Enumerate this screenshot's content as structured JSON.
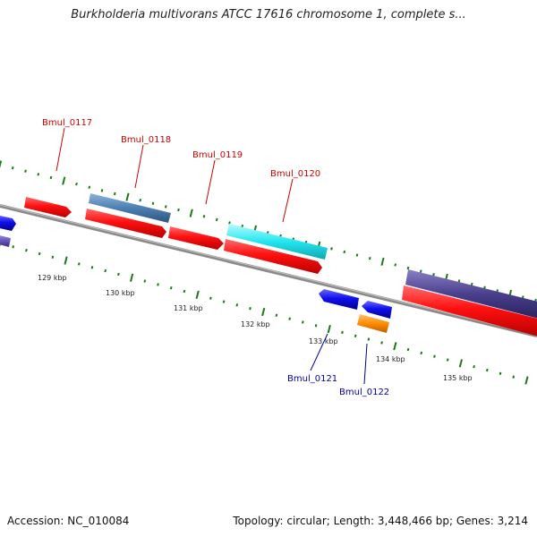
{
  "title": "Burkholderia multivorans ATCC 17616 chromosome 1, complete s...",
  "footer": {
    "accession": "Accession: NC_010084",
    "summary": "Topology: circular; Length: 3,448,466 bp; Genes: 3,214"
  },
  "colors": {
    "backbone": "#888888",
    "tick": "#1a7a1a",
    "forward_gene": "#ff1010",
    "reverse_gene": "#1010ee",
    "top_label": "#cc0000",
    "bottom_label": "#000099"
  },
  "scale_labels": [
    "129 kbp",
    "130 kbp",
    "131 kbp",
    "132 kbp",
    "133 kbp",
    "134 kbp",
    "135 kbp"
  ],
  "gene_labels": [
    {
      "name": "Bmul_0117",
      "strand": "top"
    },
    {
      "name": "Bmul_0118",
      "strand": "top"
    },
    {
      "name": "Bmul_0119",
      "strand": "top"
    },
    {
      "name": "Bmul_0120",
      "strand": "top"
    },
    {
      "name": "Bmul_0121",
      "strand": "bottom"
    },
    {
      "name": "Bmul_0122",
      "strand": "bottom"
    }
  ],
  "feature_colors": {
    "steelblue": "#4d7fb3",
    "cyan": "#22e6f0",
    "darkpurple": "#4a3f8c",
    "slate": "#6655bb",
    "orange": "#ff8c00"
  }
}
